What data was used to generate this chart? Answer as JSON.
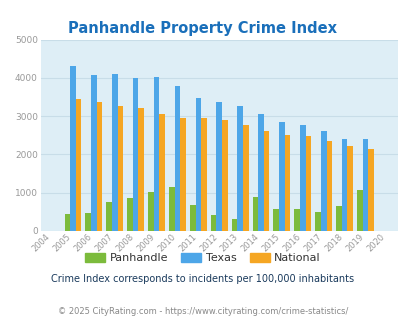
{
  "title": "Panhandle Property Crime Index",
  "years": [
    "2004",
    "2005",
    "2006",
    "2007",
    "2008",
    "2009",
    "2010",
    "2011",
    "2012",
    "2013",
    "2014",
    "2015",
    "2016",
    "2017",
    "2018",
    "2019",
    "2020"
  ],
  "panhandle": [
    0,
    450,
    470,
    750,
    850,
    1020,
    1150,
    680,
    420,
    320,
    900,
    580,
    570,
    500,
    650,
    1060,
    0
  ],
  "texas": [
    0,
    4300,
    4080,
    4100,
    4000,
    4030,
    3800,
    3480,
    3360,
    3260,
    3060,
    2850,
    2780,
    2600,
    2400,
    2400,
    0
  ],
  "national": [
    0,
    3450,
    3360,
    3260,
    3220,
    3050,
    2960,
    2960,
    2890,
    2760,
    2620,
    2500,
    2470,
    2360,
    2210,
    2150,
    0
  ],
  "ylim": [
    0,
    5000
  ],
  "yticks": [
    0,
    1000,
    2000,
    3000,
    4000,
    5000
  ],
  "bar_width": 0.27,
  "panhandle_color": "#7cbb3c",
  "texas_color": "#4da6e8",
  "national_color": "#f5a623",
  "fig_bg_color": "#ffffff",
  "plot_bg_color": "#deeef6",
  "title_color": "#1a6fba",
  "subtitle_color": "#1a3a5c",
  "footer_color": "#888888",
  "url_color": "#2288cc",
  "grid_color": "#c8dde8",
  "tick_color": "#999999",
  "legend_labels": [
    "Panhandle",
    "Texas",
    "National"
  ],
  "subtitle": "Crime Index corresponds to incidents per 100,000 inhabitants",
  "footer_left": "© 2025 CityRating.com - ",
  "footer_url": "https://www.cityrating.com/crime-statistics/"
}
